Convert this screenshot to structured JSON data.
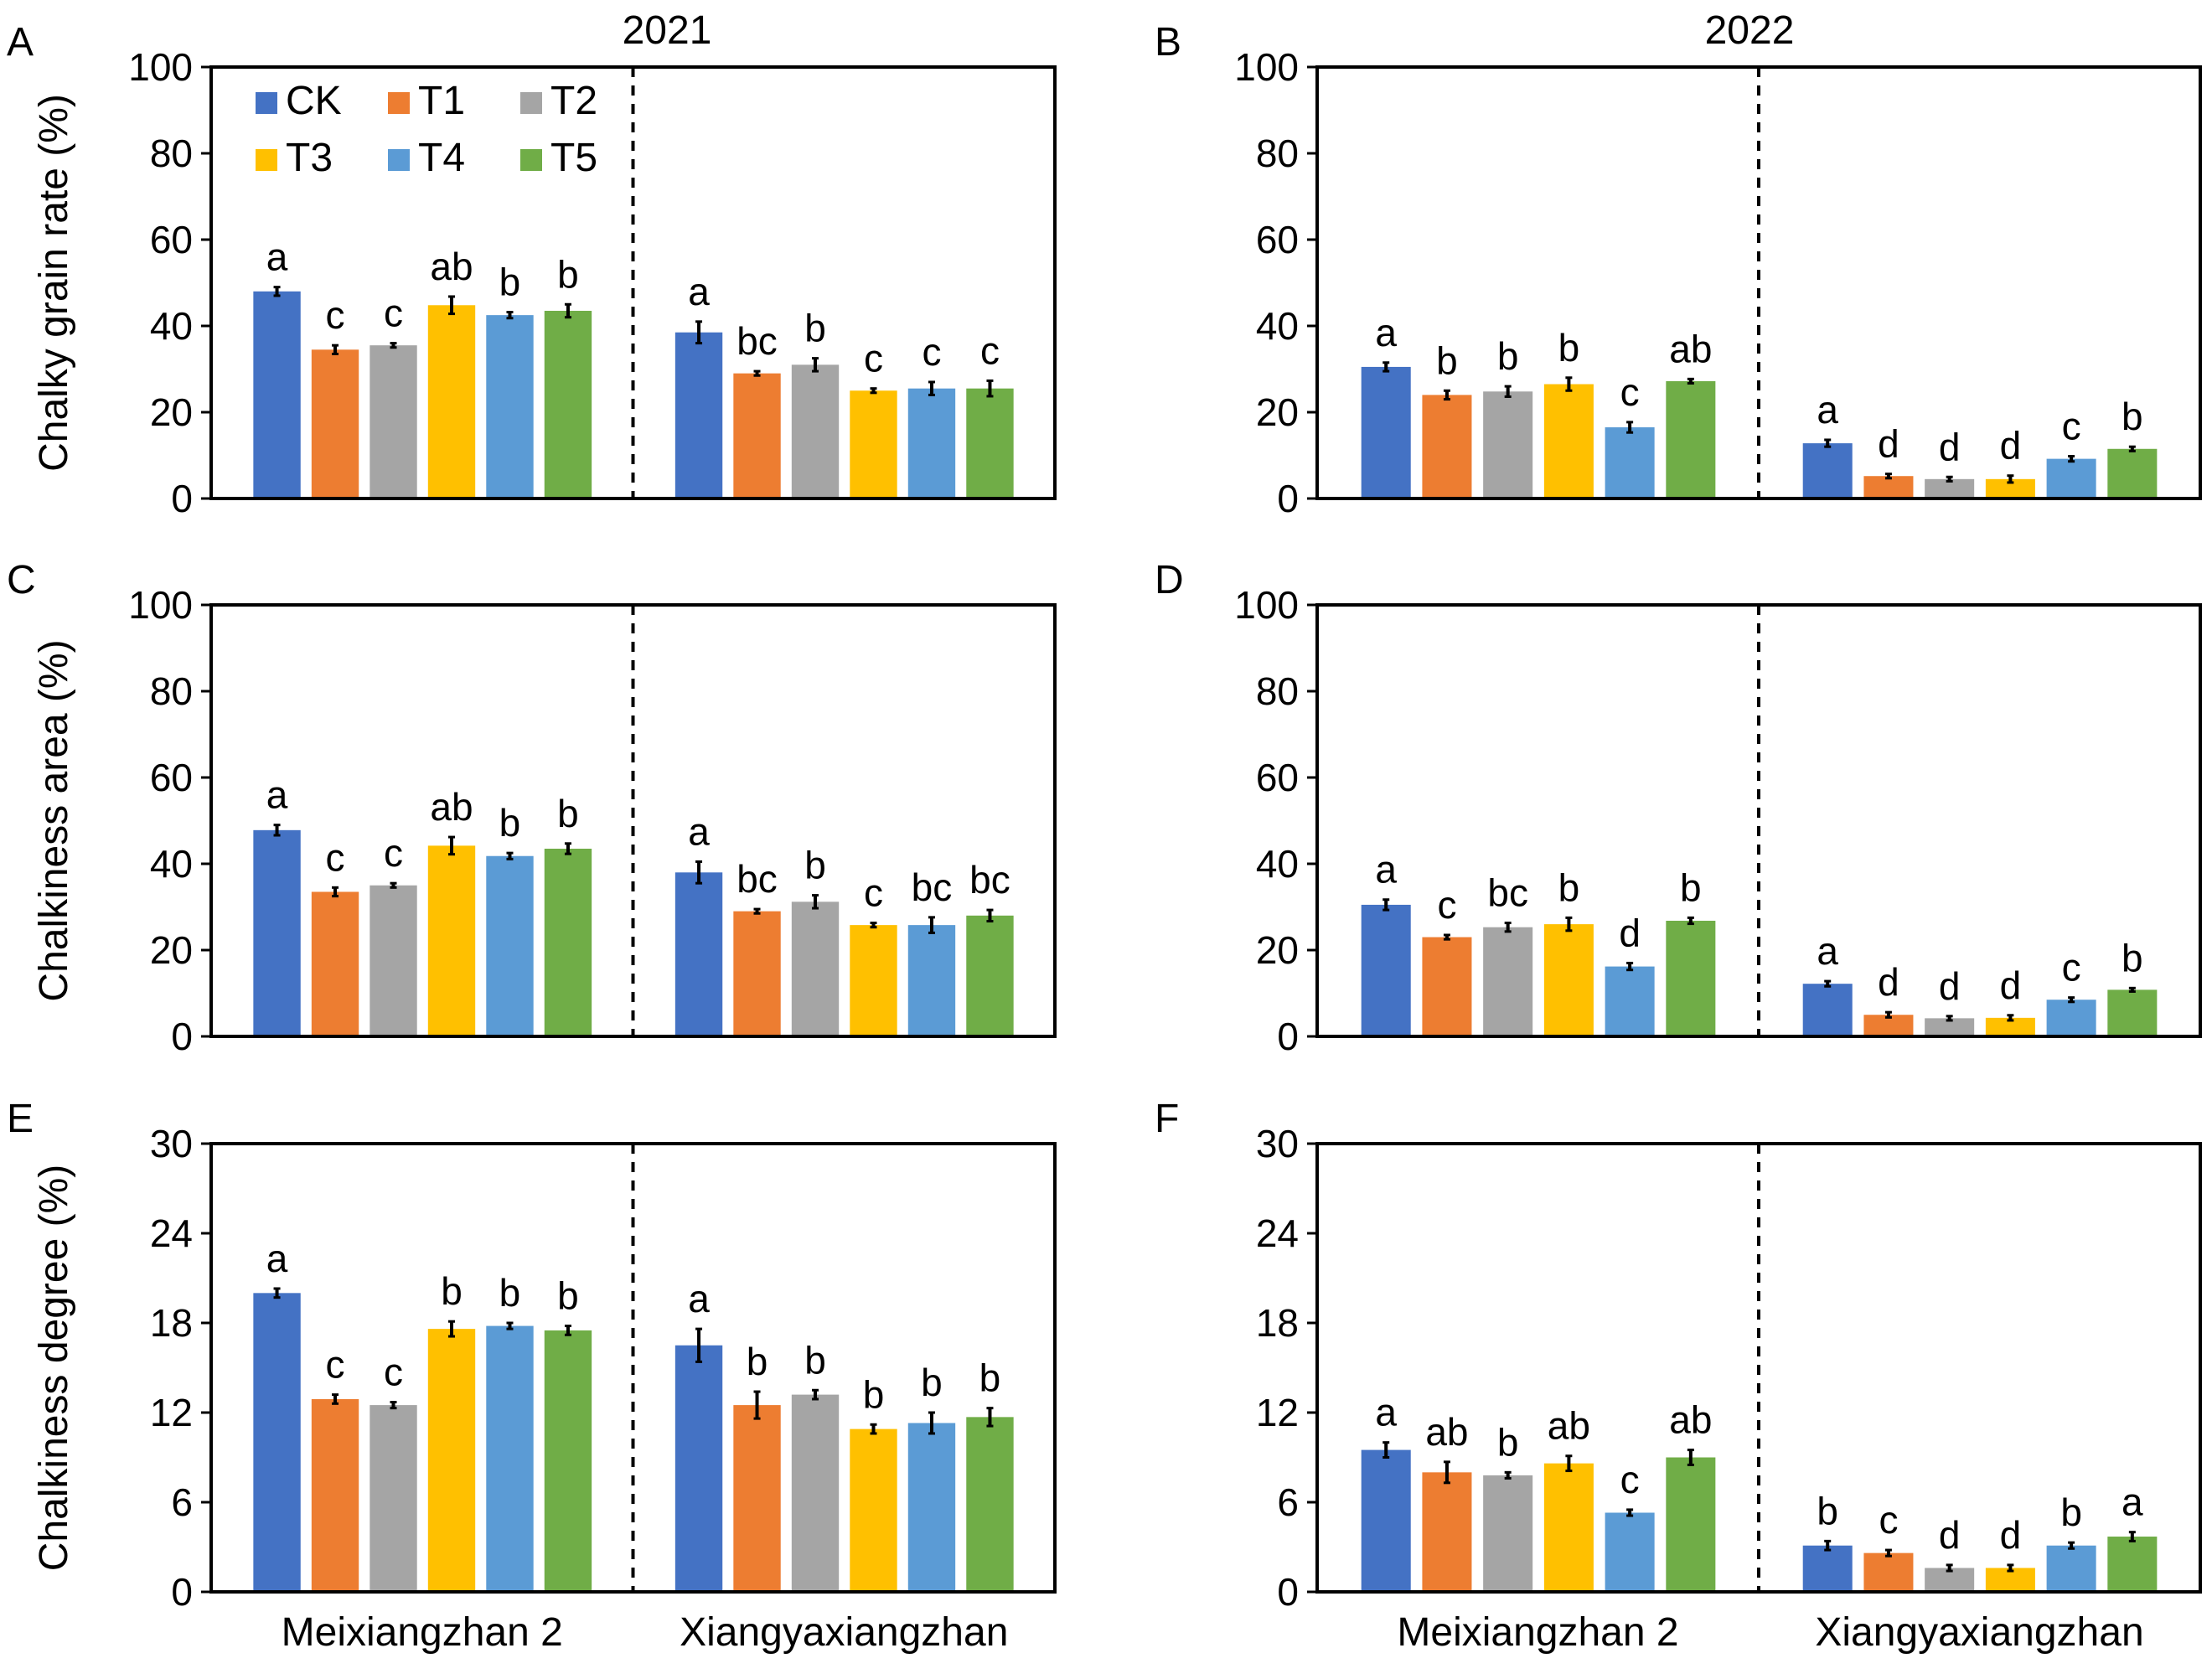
{
  "figure": {
    "year_labels": [
      "2021",
      "2022"
    ],
    "legend": [
      {
        "name": "CK",
        "color": "#4472C4"
      },
      {
        "name": "T1",
        "color": "#ED7D31"
      },
      {
        "name": "T2",
        "color": "#A5A5A5"
      },
      {
        "name": "T3",
        "color": "#FFC000"
      },
      {
        "name": "T4",
        "color": "#5B9BD5"
      },
      {
        "name": "T5",
        "color": "#70AD47"
      }
    ]
  },
  "chart_data": [
    {
      "panel": "A",
      "type": "bar",
      "year": "2021",
      "ylabel": "Chalky grain rate (%)",
      "ylim": [
        0,
        100
      ],
      "yticks": [
        "0",
        "20",
        "40",
        "60",
        "80",
        "100"
      ],
      "categories": [
        "Meixiangzhan 2",
        "Xiangyaxiangzhan"
      ],
      "series": [
        {
          "name": "CK",
          "values": [
            48.0,
            38.5
          ],
          "errors": [
            1.0,
            2.5
          ],
          "letters": [
            "a",
            "a"
          ]
        },
        {
          "name": "T1",
          "values": [
            34.5,
            29.0
          ],
          "errors": [
            1.0,
            0.5
          ],
          "letters": [
            "c",
            "bc"
          ]
        },
        {
          "name": "T2",
          "values": [
            35.5,
            31.0
          ],
          "errors": [
            0.5,
            1.5
          ],
          "letters": [
            "c",
            "b"
          ]
        },
        {
          "name": "T3",
          "values": [
            44.8,
            25.0
          ],
          "errors": [
            2.0,
            0.5
          ],
          "letters": [
            "ab",
            "c"
          ]
        },
        {
          "name": "T4",
          "values": [
            42.5,
            25.5
          ],
          "errors": [
            0.7,
            1.5
          ],
          "letters": [
            "b",
            "c"
          ]
        },
        {
          "name": "T5",
          "values": [
            43.5,
            25.5
          ],
          "errors": [
            1.5,
            1.8
          ],
          "letters": [
            "b",
            "c"
          ]
        }
      ]
    },
    {
      "panel": "B",
      "type": "bar",
      "year": "2022",
      "ylabel": "",
      "ylim": [
        0,
        100
      ],
      "yticks": [
        "0",
        "20",
        "40",
        "60",
        "80",
        "100"
      ],
      "categories": [
        "Meixiangzhan 2",
        "Xiangyaxiangzhan"
      ],
      "series": [
        {
          "name": "CK",
          "values": [
            30.5,
            12.8
          ],
          "errors": [
            1.0,
            0.8
          ],
          "letters": [
            "a",
            "a"
          ]
        },
        {
          "name": "T1",
          "values": [
            24.0,
            5.2
          ],
          "errors": [
            1.0,
            0.5
          ],
          "letters": [
            "b",
            "d"
          ]
        },
        {
          "name": "T2",
          "values": [
            24.8,
            4.5
          ],
          "errors": [
            1.2,
            0.5
          ],
          "letters": [
            "b",
            "d"
          ]
        },
        {
          "name": "T3",
          "values": [
            26.5,
            4.5
          ],
          "errors": [
            1.5,
            0.8
          ],
          "letters": [
            "b",
            "d"
          ]
        },
        {
          "name": "T4",
          "values": [
            16.5,
            9.2
          ],
          "errors": [
            1.2,
            0.6
          ],
          "letters": [
            "c",
            "c"
          ]
        },
        {
          "name": "T5",
          "values": [
            27.2,
            11.5
          ],
          "errors": [
            0.5,
            0.5
          ],
          "letters": [
            "ab",
            "b"
          ]
        }
      ]
    },
    {
      "panel": "C",
      "type": "bar",
      "year": "2021",
      "ylabel": "Chalkiness area (%)",
      "ylim": [
        0,
        100
      ],
      "yticks": [
        "0",
        "20",
        "40",
        "60",
        "80",
        "100"
      ],
      "categories": [
        "Meixiangzhan 2",
        "Xiangyaxiangzhan"
      ],
      "series": [
        {
          "name": "CK",
          "values": [
            47.8,
            38.0
          ],
          "errors": [
            1.2,
            2.5
          ],
          "letters": [
            "a",
            "a"
          ]
        },
        {
          "name": "T1",
          "values": [
            33.5,
            29.0
          ],
          "errors": [
            1.0,
            0.5
          ],
          "letters": [
            "c",
            "bc"
          ]
        },
        {
          "name": "T2",
          "values": [
            35.0,
            31.2
          ],
          "errors": [
            0.5,
            1.5
          ],
          "letters": [
            "c",
            "b"
          ]
        },
        {
          "name": "T3",
          "values": [
            44.2,
            25.8
          ],
          "errors": [
            2.0,
            0.5
          ],
          "letters": [
            "ab",
            "c"
          ]
        },
        {
          "name": "T4",
          "values": [
            41.8,
            25.8
          ],
          "errors": [
            0.7,
            1.8
          ],
          "letters": [
            "b",
            "bc"
          ]
        },
        {
          "name": "T5",
          "values": [
            43.5,
            28.0
          ],
          "errors": [
            1.2,
            1.3
          ],
          "letters": [
            "b",
            "bc"
          ]
        }
      ]
    },
    {
      "panel": "D",
      "type": "bar",
      "year": "2022",
      "ylabel": "",
      "ylim": [
        0,
        100
      ],
      "yticks": [
        "0",
        "20",
        "40",
        "60",
        "80",
        "100"
      ],
      "categories": [
        "Meixiangzhan 2",
        "Xiangyaxiangzhan"
      ],
      "series": [
        {
          "name": "CK",
          "values": [
            30.5,
            12.2
          ],
          "errors": [
            1.2,
            0.6
          ],
          "letters": [
            "a",
            "a"
          ]
        },
        {
          "name": "T1",
          "values": [
            23.0,
            5.0
          ],
          "errors": [
            0.5,
            0.6
          ],
          "letters": [
            "c",
            "d"
          ]
        },
        {
          "name": "T2",
          "values": [
            25.3,
            4.2
          ],
          "errors": [
            1.0,
            0.5
          ],
          "letters": [
            "bc",
            "d"
          ]
        },
        {
          "name": "T3",
          "values": [
            26.0,
            4.3
          ],
          "errors": [
            1.5,
            0.6
          ],
          "letters": [
            "b",
            "d"
          ]
        },
        {
          "name": "T4",
          "values": [
            16.2,
            8.5
          ],
          "errors": [
            0.8,
            0.5
          ],
          "letters": [
            "d",
            "c"
          ]
        },
        {
          "name": "T5",
          "values": [
            26.8,
            10.8
          ],
          "errors": [
            0.7,
            0.4
          ],
          "letters": [
            "b",
            "b"
          ]
        }
      ]
    },
    {
      "panel": "E",
      "type": "bar",
      "year": "2021",
      "ylabel": "Chalkiness degree (%)",
      "ylim": [
        0,
        30
      ],
      "yticks": [
        "0",
        "6",
        "12",
        "18",
        "24",
        "30"
      ],
      "categories": [
        "Meixiangzhan 2",
        "Xiangyaxiangzhan"
      ],
      "series": [
        {
          "name": "CK",
          "values": [
            20.0,
            16.5
          ],
          "errors": [
            0.3,
            1.1
          ],
          "letters": [
            "a",
            "a"
          ]
        },
        {
          "name": "T1",
          "values": [
            12.9,
            12.5
          ],
          "errors": [
            0.3,
            0.9
          ],
          "letters": [
            "c",
            "b"
          ]
        },
        {
          "name": "T2",
          "values": [
            12.5,
            13.2
          ],
          "errors": [
            0.2,
            0.3
          ],
          "letters": [
            "c",
            "b"
          ]
        },
        {
          "name": "T3",
          "values": [
            17.6,
            10.9
          ],
          "errors": [
            0.5,
            0.3
          ],
          "letters": [
            "b",
            "b"
          ]
        },
        {
          "name": "T4",
          "values": [
            17.8,
            11.3
          ],
          "errors": [
            0.2,
            0.7
          ],
          "letters": [
            "b",
            "b"
          ]
        },
        {
          "name": "T5",
          "values": [
            17.5,
            11.7
          ],
          "errors": [
            0.3,
            0.6
          ],
          "letters": [
            "b",
            "b"
          ]
        }
      ]
    },
    {
      "panel": "F",
      "type": "bar",
      "year": "2022",
      "ylabel": "",
      "ylim": [
        0,
        30
      ],
      "yticks": [
        "0",
        "6",
        "12",
        "18",
        "24",
        "30"
      ],
      "categories": [
        "Meixiangzhan 2",
        "Xiangyaxiangzhan"
      ],
      "series": [
        {
          "name": "CK",
          "values": [
            9.5,
            3.1
          ],
          "errors": [
            0.5,
            0.3
          ],
          "letters": [
            "a",
            "b"
          ]
        },
        {
          "name": "T1",
          "values": [
            8.0,
            2.6
          ],
          "errors": [
            0.7,
            0.2
          ],
          "letters": [
            "ab",
            "c"
          ]
        },
        {
          "name": "T2",
          "values": [
            7.8,
            1.6
          ],
          "errors": [
            0.2,
            0.2
          ],
          "letters": [
            "b",
            "d"
          ]
        },
        {
          "name": "T3",
          "values": [
            8.6,
            1.6
          ],
          "errors": [
            0.5,
            0.2
          ],
          "letters": [
            "ab",
            "d"
          ]
        },
        {
          "name": "T4",
          "values": [
            5.3,
            3.1
          ],
          "errors": [
            0.2,
            0.2
          ],
          "letters": [
            "c",
            "b"
          ]
        },
        {
          "name": "T5",
          "values": [
            9.0,
            3.7
          ],
          "errors": [
            0.5,
            0.3
          ],
          "letters": [
            "ab",
            "a"
          ]
        }
      ]
    }
  ]
}
